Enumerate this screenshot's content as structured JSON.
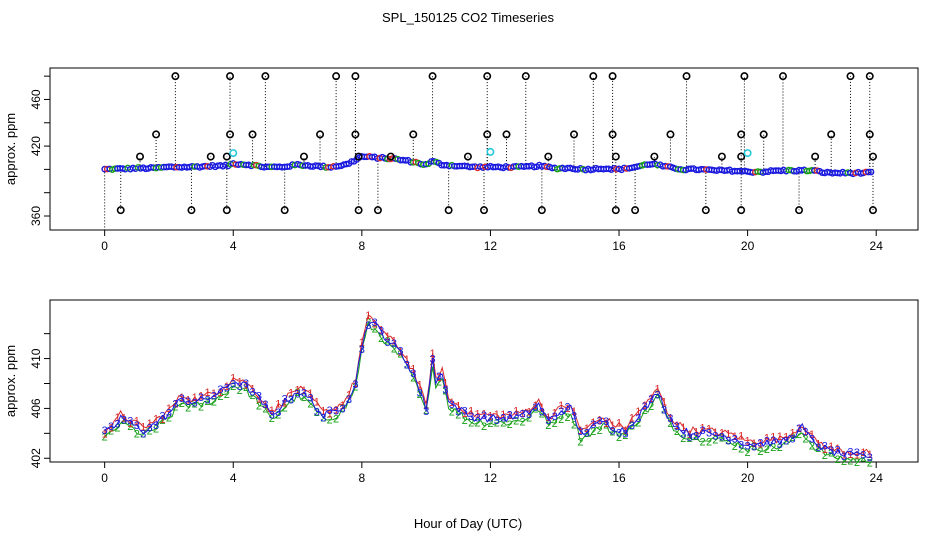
{
  "title": "SPL_150125  CO2 Timeseries",
  "xlabel": "Hour of Day (UTC)",
  "chart_data": [
    {
      "type": "scatter",
      "panel": "top",
      "ylabel": "approx. ppm",
      "xlim": [
        -1.7,
        25.3
      ],
      "ylim": [
        348,
        487
      ],
      "xticks": [
        0,
        4,
        8,
        12,
        16,
        20,
        24
      ],
      "yticks": [
        360,
        420,
        460
      ],
      "yticks_minor": [
        380,
        400,
        440,
        480
      ],
      "baseline": [
        [
          0,
          400
        ],
        [
          0.5,
          400.5
        ],
        [
          1,
          401
        ],
        [
          1.5,
          401
        ],
        [
          2,
          402
        ],
        [
          2.5,
          402
        ],
        [
          3,
          402.5
        ],
        [
          3.5,
          403
        ],
        [
          3.8,
          403
        ],
        [
          4,
          405
        ],
        [
          4.5,
          404
        ],
        [
          5,
          402
        ],
        [
          5.5,
          402
        ],
        [
          6,
          404
        ],
        [
          6.5,
          403
        ],
        [
          7,
          402
        ],
        [
          7.5,
          404
        ],
        [
          7.8,
          408
        ],
        [
          8,
          411
        ],
        [
          8.5,
          410
        ],
        [
          9,
          409
        ],
        [
          9.5,
          407
        ],
        [
          10,
          404
        ],
        [
          10.2,
          407
        ],
        [
          10.5,
          404
        ],
        [
          11,
          403
        ],
        [
          11.5,
          402
        ],
        [
          12,
          402
        ],
        [
          12.5,
          402
        ],
        [
          13,
          402
        ],
        [
          13.5,
          403
        ],
        [
          14,
          401
        ],
        [
          14.5,
          401
        ],
        [
          15,
          400
        ],
        [
          15.5,
          401
        ],
        [
          16,
          400
        ],
        [
          16.5,
          402
        ],
        [
          17,
          405
        ],
        [
          17.5,
          402
        ],
        [
          18,
          400
        ],
        [
          18.5,
          400
        ],
        [
          19,
          399
        ],
        [
          19.5,
          399
        ],
        [
          20,
          398
        ],
        [
          20.5,
          398
        ],
        [
          21,
          399
        ],
        [
          21.5,
          399
        ],
        [
          22,
          399
        ],
        [
          22.5,
          397
        ],
        [
          23,
          397
        ],
        [
          23.5,
          397
        ],
        [
          23.8,
          397
        ]
      ],
      "outliers_high": [
        2.2,
        3.9,
        5.0,
        7.2,
        7.8,
        10.2,
        11.9,
        13.1,
        15.2,
        15.8,
        18.1,
        19.9,
        21.1,
        23.2,
        23.8
      ],
      "outliers_mid": [
        1.6,
        3.9,
        4.6,
        6.7,
        7.8,
        9.6,
        11.9,
        12.5,
        14.6,
        15.8,
        17.6,
        19.8,
        20.5,
        22.6,
        23.8
      ],
      "outliers_low": [
        1.1,
        3.3,
        3.8,
        6.2,
        7.9,
        8.9,
        11.3,
        13.8,
        15.9,
        17.1,
        19.2,
        19.8,
        22.1,
        23.9
      ],
      "outliers_bottom": [
        0.5,
        2.7,
        3.8,
        5.6,
        7.9,
        8.5,
        10.7,
        11.8,
        13.6,
        15.9,
        16.5,
        18.7,
        19.8,
        21.6,
        23.9
      ],
      "cyan_points": [
        [
          4.0,
          414
        ],
        [
          12.0,
          415
        ],
        [
          20.0,
          414
        ]
      ],
      "outlier_values": {
        "high": 480,
        "mid": 430,
        "low": 411,
        "bottom": 365
      }
    },
    {
      "type": "line",
      "panel": "bottom",
      "ylabel": "approx. ppm",
      "xlim": [
        -1.7,
        25.3
      ],
      "ylim": [
        401.7,
        414.7
      ],
      "xticks": [
        0,
        4,
        8,
        12,
        16,
        20,
        24
      ],
      "yticks": [
        402,
        406,
        410
      ],
      "yticks_minor": [
        404,
        408,
        412
      ],
      "series_keypoints": [
        [
          0,
          404
        ],
        [
          0.3,
          404.5
        ],
        [
          0.5,
          405.3
        ],
        [
          0.8,
          404.8
        ],
        [
          1.2,
          404.2
        ],
        [
          1.6,
          404.8
        ],
        [
          2,
          405.6
        ],
        [
          2.4,
          406.8
        ],
        [
          2.8,
          406.5
        ],
        [
          3.2,
          406.8
        ],
        [
          3.6,
          407.3
        ],
        [
          4,
          408.2
        ],
        [
          4.4,
          407.8
        ],
        [
          4.8,
          406.8
        ],
        [
          5.2,
          405.4
        ],
        [
          5.6,
          406.5
        ],
        [
          6,
          407.4
        ],
        [
          6.4,
          406.7
        ],
        [
          6.8,
          405.4
        ],
        [
          7.2,
          405.8
        ],
        [
          7.5,
          406.5
        ],
        [
          7.8,
          408
        ],
        [
          8,
          411
        ],
        [
          8.2,
          413
        ],
        [
          8.5,
          412.5
        ],
        [
          8.8,
          411.5
        ],
        [
          9.2,
          410.5
        ],
        [
          9.6,
          408.8
        ],
        [
          10,
          406
        ],
        [
          10.2,
          410
        ],
        [
          10.3,
          408
        ],
        [
          10.5,
          409
        ],
        [
          10.7,
          406.5
        ],
        [
          11,
          406
        ],
        [
          11.4,
          405.3
        ],
        [
          12,
          405.2
        ],
        [
          12.5,
          405.2
        ],
        [
          13,
          405.4
        ],
        [
          13.5,
          406.3
        ],
        [
          13.8,
          405
        ],
        [
          14.2,
          405.8
        ],
        [
          14.5,
          406
        ],
        [
          14.8,
          404
        ],
        [
          15.2,
          404.5
        ],
        [
          15.5,
          405
        ],
        [
          15.8,
          404.5
        ],
        [
          16.2,
          404.2
        ],
        [
          16.6,
          405.5
        ],
        [
          17,
          406.5
        ],
        [
          17.2,
          407.4
        ],
        [
          17.5,
          405.5
        ],
        [
          17.8,
          404.5
        ],
        [
          18.2,
          404
        ],
        [
          18.7,
          404
        ],
        [
          19.2,
          403.8
        ],
        [
          19.6,
          403.6
        ],
        [
          20,
          403.1
        ],
        [
          20.5,
          403.2
        ],
        [
          21,
          403.3
        ],
        [
          21.4,
          403.8
        ],
        [
          21.7,
          404.5
        ],
        [
          22,
          403.4
        ],
        [
          22.5,
          402.6
        ],
        [
          23,
          402.3
        ],
        [
          23.5,
          402.2
        ],
        [
          23.9,
          402.2
        ]
      ]
    }
  ]
}
